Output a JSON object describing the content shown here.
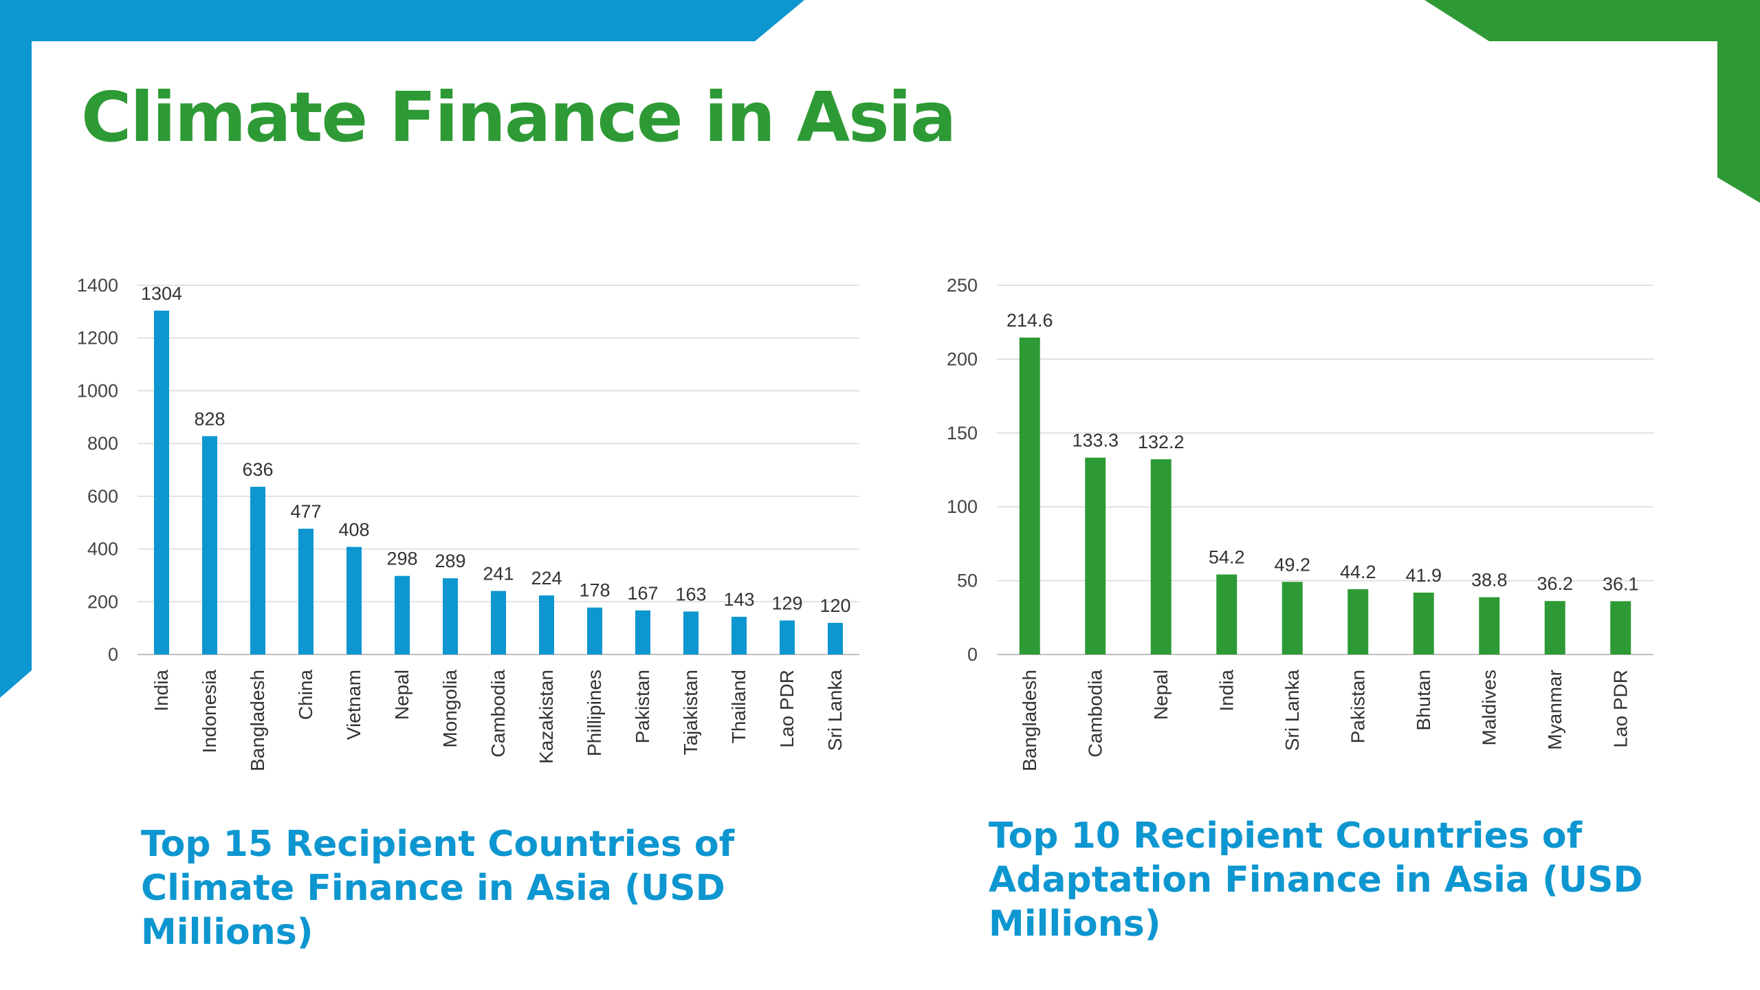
{
  "slide": {
    "title": "Climate Finance in Asia",
    "colors": {
      "blue": "#0d96d0",
      "green": "#2e9a35"
    }
  },
  "charts": [
    {
      "caption": "Top 15 Recipient Countries of Climate Finance in Asia (USD Millions)",
      "bar_color": "#0d96d0"
    },
    {
      "caption": "Top 10 Recipient Countries of Adaptation Finance in Asia (USD Millions)",
      "bar_color": "#2e9a35"
    }
  ],
  "chart_data": [
    {
      "type": "bar",
      "title": "",
      "xlabel": "",
      "ylabel": "",
      "categories": [
        "India",
        "Indonesia",
        "Bangladesh",
        "China",
        "Vietnam",
        "Nepal",
        "Mongolia",
        "Cambodia",
        "Kazakistan",
        "Phillipines",
        "Pakistan",
        "Tajakistan",
        "Thailand",
        "Lao PDR",
        "Sri Lanka"
      ],
      "values": [
        1304,
        828,
        636,
        477,
        408,
        298,
        289,
        241,
        224,
        178,
        167,
        163,
        143,
        129,
        120
      ],
      "data_labels": [
        "1304",
        "828",
        "636",
        "477",
        "408",
        "298",
        "289",
        "241",
        "224",
        "178",
        "167",
        "163",
        "143",
        "129",
        "120"
      ],
      "ylim": [
        0,
        1400
      ],
      "yticks": [
        0,
        200,
        400,
        600,
        800,
        1000,
        1200,
        1400
      ],
      "grid": true,
      "legend": "none"
    },
    {
      "type": "bar",
      "title": "",
      "xlabel": "",
      "ylabel": "",
      "categories": [
        "Bangladesh",
        "Cambodia",
        "Nepal",
        "India",
        "Sri Lanka",
        "Pakistan",
        "Bhutan",
        "Maldives",
        "Myanmar",
        "Lao PDR"
      ],
      "values": [
        214.6,
        133.3,
        132.2,
        54.2,
        49.2,
        44.2,
        41.9,
        38.8,
        36.2,
        36.1
      ],
      "data_labels": [
        "214.6",
        "133.3",
        "132.2",
        "54.2",
        "49.2",
        "44.2",
        "41.9",
        "38.8",
        "36.2",
        "36.1"
      ],
      "ylim": [
        0,
        250
      ],
      "yticks": [
        0,
        50,
        100,
        150,
        200,
        250
      ],
      "grid": true,
      "legend": "none"
    }
  ]
}
